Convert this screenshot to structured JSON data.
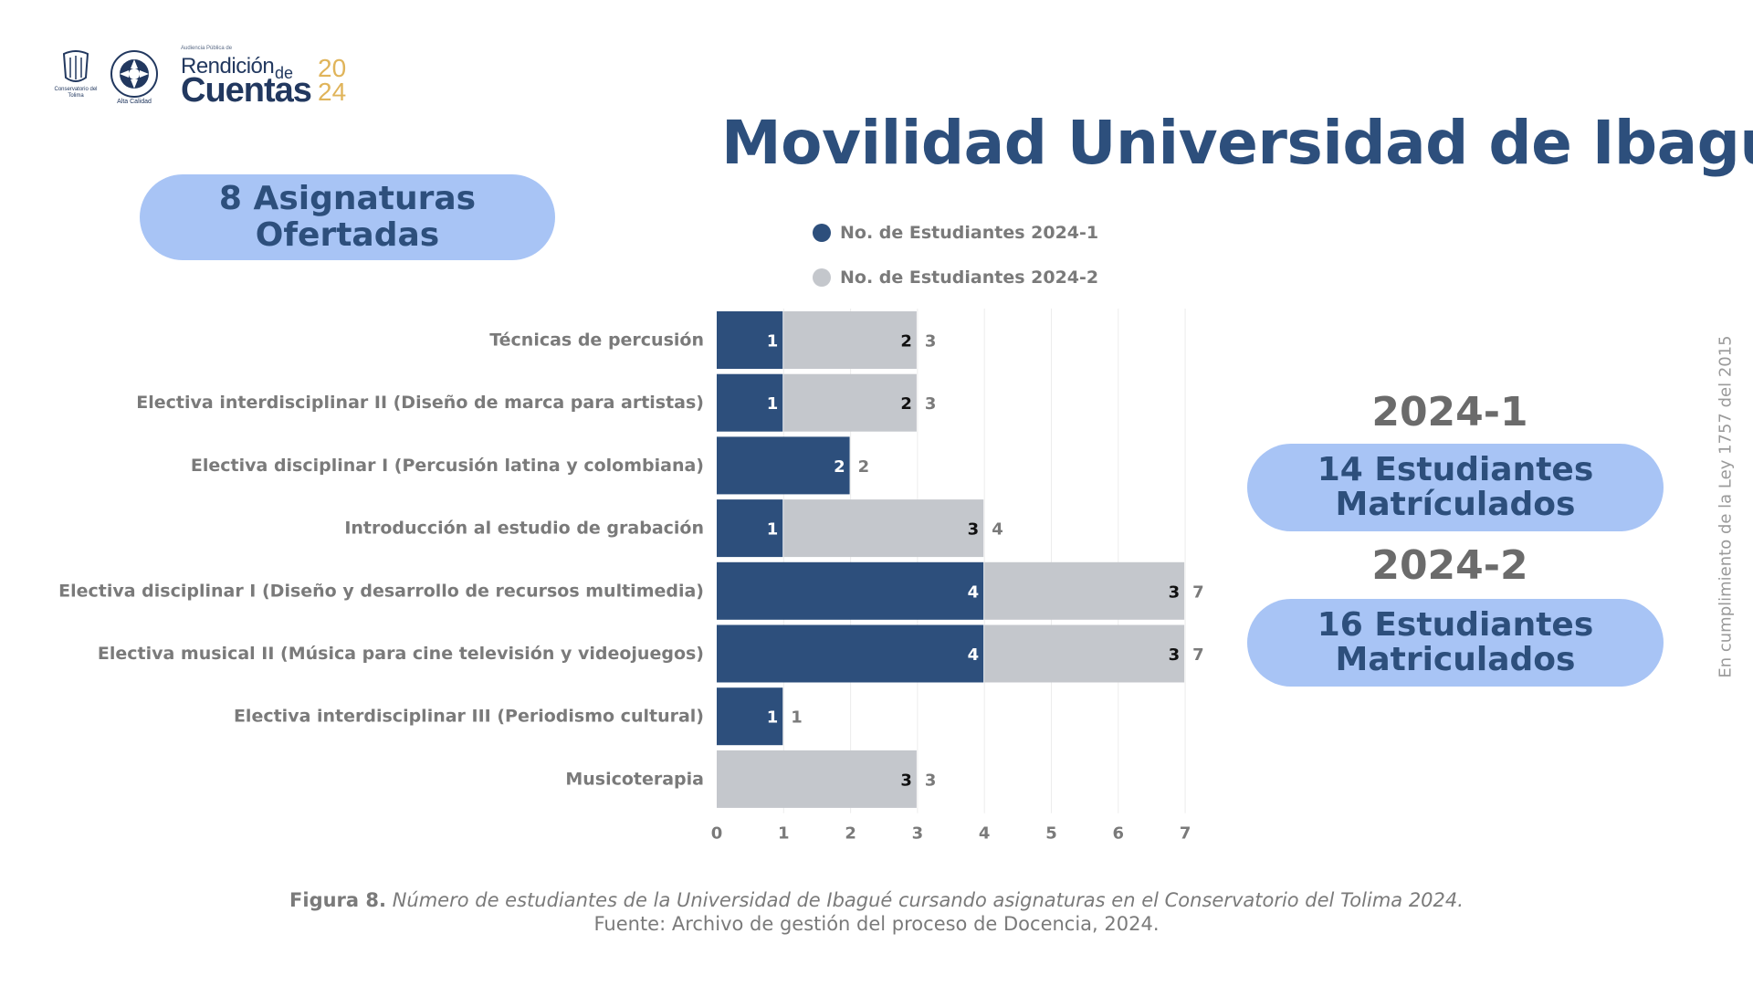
{
  "header": {
    "seal1_text": "Conservatorio del Tolima",
    "seal2_text": "Alta Calidad",
    "brand_small": "Audiencia Pública de",
    "brand_rendicion": "Rendición",
    "brand_de": "de",
    "brand_cuentas": "Cuentas",
    "brand_year_top": "20",
    "brand_year_bottom": "24"
  },
  "title": "Movilidad Universidad de Ibagué",
  "subjects_pill": {
    "line1": "8 Asignaturas",
    "line2": "Ofertadas"
  },
  "semesters": [
    {
      "label": "2024-1",
      "line1": "14 Estudiantes",
      "line2": "Matrículados"
    },
    {
      "label": "2024-2",
      "line1": "16 Estudiantes",
      "line2": "Matriculados"
    }
  ],
  "side_note": "En cumplimiento de la Ley 1757 del 2015",
  "caption": {
    "figure_label": "Figura 8.",
    "figure_text": "Número de estudiantes de la Universidad de Ibagué cursando asignaturas en el Conservatorio del Tolima 2024.",
    "source": "Fuente: Archivo de gestión del proceso de Docencia, 2024."
  },
  "colors": {
    "series1": "#2d4f7c",
    "series2": "#c4c7cc",
    "accent_pill": "#a8c4f5",
    "title": "#2d4f7c"
  },
  "chart_data": {
    "type": "bar",
    "orientation": "horizontal",
    "stacked": true,
    "categories": [
      "Técnicas de percusión",
      "Electiva interdisciplinar II (Diseño de marca para artistas)",
      "Electiva disciplinar I (Percusión latina y colombiana)",
      "Introducción al estudio de grabación",
      "Electiva disciplinar I (Diseño y desarrollo de recursos multimedia)",
      "Electiva musical II (Música para cine televisión y videojuegos)",
      "Electiva interdisciplinar III (Periodismo cultural)",
      "Musicoterapia"
    ],
    "series": [
      {
        "name": "No. de Estudiantes 2024-1",
        "values": [
          1,
          1,
          2,
          1,
          4,
          4,
          1,
          0
        ],
        "color": "#2d4f7c"
      },
      {
        "name": "No. de Estudiantes 2024-2",
        "values": [
          2,
          2,
          0,
          3,
          3,
          3,
          0,
          3
        ],
        "color": "#c4c7cc"
      }
    ],
    "totals": [
      3,
      3,
      2,
      4,
      7,
      7,
      1,
      3
    ],
    "xlim": [
      0,
      7
    ],
    "xticks": [
      "0",
      "1",
      "2",
      "3",
      "4",
      "5",
      "6",
      "7"
    ],
    "grid": true,
    "legend_position": "top"
  }
}
